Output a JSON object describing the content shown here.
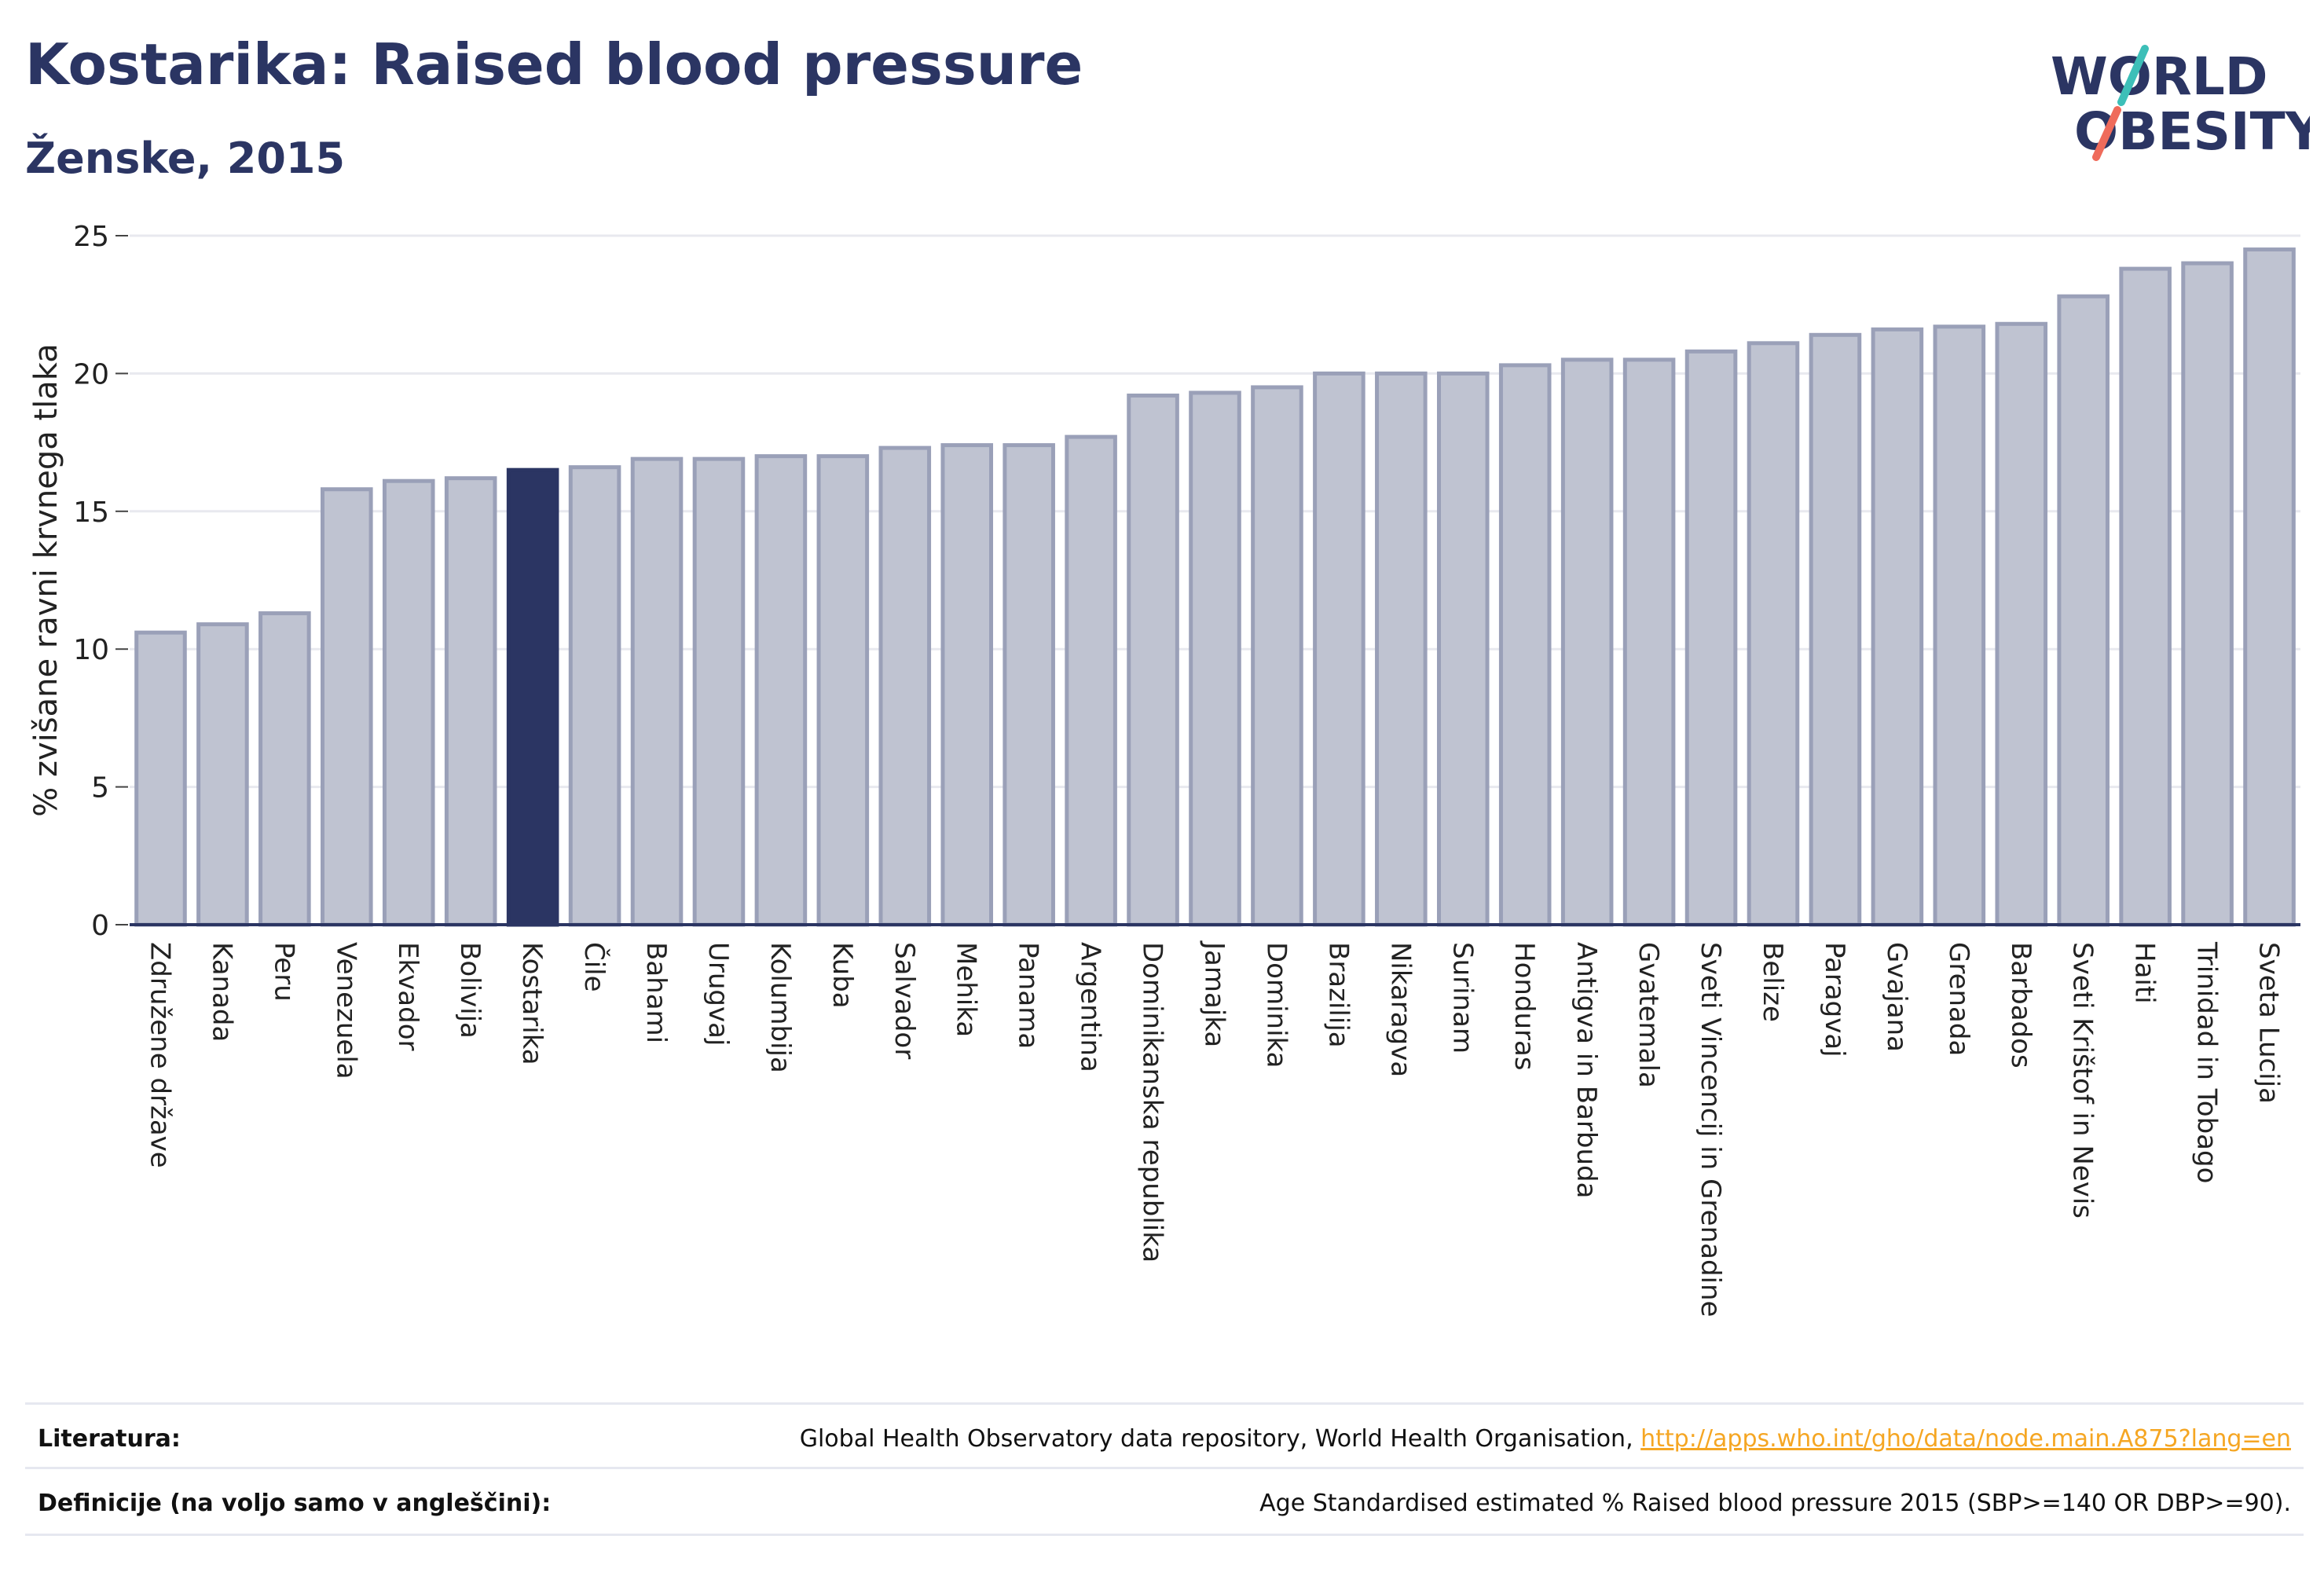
{
  "header": {
    "title": "Kostarika: Raised blood pressure",
    "subtitle": "Ženske, 2015"
  },
  "logo": {
    "line1": "WORLD",
    "line2": "OBESITY",
    "colors": {
      "text": "#2b3563",
      "slash_teal": "#3dbfb8",
      "slash_coral": "#ef6b5b"
    }
  },
  "chart_data": {
    "type": "bar",
    "ylabel": "% zvišane ravni krvnega tlaka",
    "ylim": [
      0,
      25
    ],
    "yticks": [
      0,
      5,
      10,
      15,
      20,
      25
    ],
    "grid": true,
    "highlight": "Kostarika",
    "colors": {
      "bar": "#bfc3d1",
      "bar_border": "#9aa0b8",
      "highlight": "#2b3563",
      "axis": "#2b3563",
      "grid": "#e8e9ef"
    },
    "categories": [
      "Združene države",
      "Kanada",
      "Peru",
      "Venezuela",
      "Ekvador",
      "Bolivija",
      "Kostarika",
      "Čile",
      "Bahami",
      "Urugvaj",
      "Kolumbija",
      "Kuba",
      "Salvador",
      "Mehika",
      "Panama",
      "Argentina",
      "Dominikanska republika",
      "Jamajka",
      "Dominika",
      "Brazilija",
      "Nikaragva",
      "Surinam",
      "Honduras",
      "Antigva in Barbuda",
      "Gvatemala",
      "Sveti Vincencij in Grenadine",
      "Belize",
      "Paragvaj",
      "Gvajana",
      "Grenada",
      "Barbados",
      "Sveti Krištof in Nevis",
      "Haiti",
      "Trinidad in Tobago",
      "Sveta Lucija"
    ],
    "values": [
      10.6,
      10.9,
      11.3,
      15.8,
      16.1,
      16.2,
      16.5,
      16.6,
      16.9,
      16.9,
      17.0,
      17.0,
      17.3,
      17.4,
      17.4,
      17.7,
      19.2,
      19.3,
      19.5,
      20.0,
      20.0,
      20.0,
      20.3,
      20.5,
      20.5,
      20.8,
      21.1,
      21.4,
      21.6,
      21.7,
      21.8,
      22.8,
      23.8,
      24.0,
      24.5
    ]
  },
  "footer": {
    "literature_label": "Literatura:",
    "literature_text": "Global Health Observatory data repository, World Health Organisation, ",
    "literature_link": "http://apps.who.int/gho/data/node.main.A875?lang=en",
    "definitions_label": "Definicije (na voljo samo v angleščini):",
    "definitions_text": "Age Standardised estimated % Raised blood pressure 2015 (SBP>=140 OR DBP>=90)."
  }
}
